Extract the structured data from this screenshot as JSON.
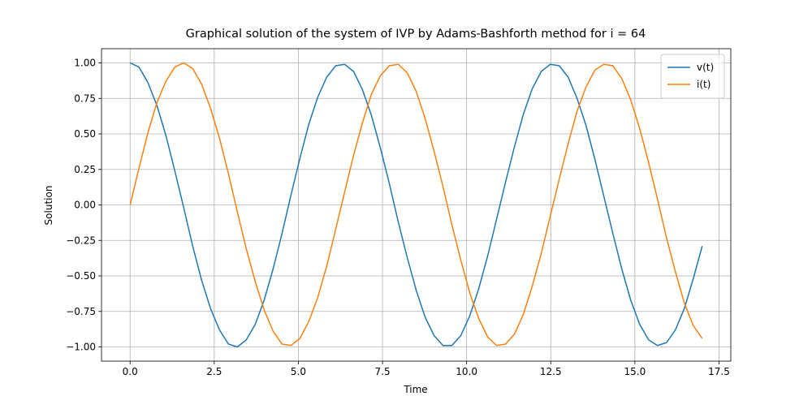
{
  "chart_data": {
    "type": "line",
    "title": "Graphical solution of the system of IVP by Adams-Bashforth method for i = 64",
    "xlabel": "Time",
    "ylabel": "Solution",
    "x": [
      0,
      0.2656,
      0.5313,
      0.7969,
      1.0625,
      1.3281,
      1.5938,
      1.8594,
      2.125,
      2.3906,
      2.6563,
      2.9219,
      3.1875,
      3.4531,
      3.7188,
      3.9844,
      4.25,
      4.5156,
      4.7813,
      5.0469,
      5.3125,
      5.5781,
      5.8438,
      6.1094,
      6.375,
      6.6406,
      6.9063,
      7.1719,
      7.4375,
      7.7031,
      7.9688,
      8.2344,
      8.5,
      8.7656,
      9.0313,
      9.2969,
      9.5625,
      9.8281,
      10.0938,
      10.3594,
      10.625,
      10.8906,
      11.1563,
      11.4219,
      11.6875,
      11.9531,
      12.2188,
      12.4844,
      12.75,
      13.0156,
      13.2813,
      13.5469,
      13.8125,
      14.0781,
      14.3438,
      14.6094,
      14.875,
      15.1406,
      15.4063,
      15.6719,
      15.9375,
      16.2031,
      16.4688,
      16.7344,
      17.0
    ],
    "series": [
      {
        "name": "v(t)",
        "color": "#1f77b4",
        "values": [
          1.0,
          0.97,
          0.86,
          0.7,
          0.49,
          0.24,
          -0.02,
          -0.29,
          -0.53,
          -0.73,
          -0.88,
          -0.98,
          -1.0,
          -0.95,
          -0.84,
          -0.67,
          -0.45,
          -0.2,
          0.07,
          0.33,
          0.57,
          0.76,
          0.9,
          0.98,
          0.99,
          0.94,
          0.81,
          0.63,
          0.4,
          0.15,
          -0.12,
          -0.37,
          -0.6,
          -0.79,
          -0.92,
          -0.99,
          -0.99,
          -0.92,
          -0.78,
          -0.59,
          -0.36,
          -0.1,
          0.16,
          0.41,
          0.64,
          0.82,
          0.94,
          0.99,
          0.98,
          0.9,
          0.75,
          0.56,
          0.32,
          0.06,
          -0.2,
          -0.45,
          -0.67,
          -0.84,
          -0.95,
          -0.99,
          -0.97,
          -0.88,
          -0.73,
          -0.52,
          -0.29
        ]
      },
      {
        "name": "i(t)",
        "color": "#ff7f0e",
        "values": [
          0.0,
          0.26,
          0.51,
          0.72,
          0.87,
          0.97,
          1.0,
          0.96,
          0.85,
          0.68,
          0.47,
          0.22,
          -0.05,
          -0.31,
          -0.54,
          -0.74,
          -0.89,
          -0.98,
          -0.99,
          -0.94,
          -0.82,
          -0.65,
          -0.43,
          -0.17,
          0.09,
          0.35,
          0.58,
          0.78,
          0.91,
          0.98,
          0.99,
          0.93,
          0.8,
          0.61,
          0.38,
          0.13,
          -0.14,
          -0.39,
          -0.62,
          -0.8,
          -0.93,
          -0.99,
          -0.98,
          -0.91,
          -0.77,
          -0.57,
          -0.34,
          -0.08,
          0.18,
          0.43,
          0.66,
          0.83,
          0.95,
          0.99,
          0.98,
          0.89,
          0.74,
          0.54,
          0.3,
          0.04,
          -0.23,
          -0.47,
          -0.69,
          -0.85,
          -0.94
        ]
      }
    ],
    "xlim": [
      -0.85,
      17.85
    ],
    "ylim": [
      -1.1,
      1.1
    ],
    "xticks": [
      {
        "value": 0,
        "label": "0.0"
      },
      2.5,
      {
        "value": 5,
        "label": "5.0"
      },
      7.5,
      {
        "value": 10,
        "label": "10.0"
      },
      12.5,
      {
        "value": 15,
        "label": "15.0"
      },
      17.5
    ],
    "yticks": [
      {
        "value": -1,
        "label": "−1.00"
      },
      {
        "value": -0.75,
        "label": "−0.75"
      },
      {
        "value": -0.5,
        "label": "−0.50"
      },
      {
        "value": -0.25,
        "label": "−0.25"
      },
      {
        "value": 0,
        "label": "0.00"
      },
      0.25,
      {
        "value": 0.5,
        "label": "0.50"
      },
      0.75,
      {
        "value": 1,
        "label": "1.00"
      }
    ],
    "grid": true,
    "legend": "upper right"
  }
}
